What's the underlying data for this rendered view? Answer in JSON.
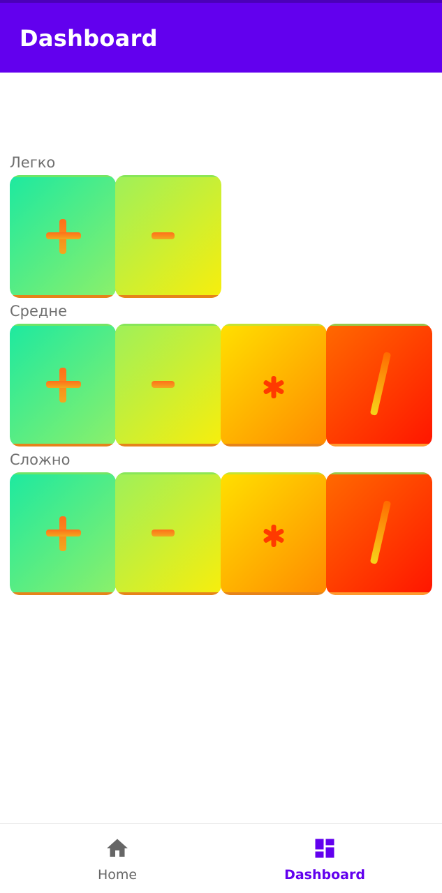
{
  "app_bar": {
    "title": "Dashboard"
  },
  "sections": [
    {
      "label": "Легко",
      "ops": [
        "+",
        "-"
      ]
    },
    {
      "label": "Средне",
      "ops": [
        "+",
        "-",
        "*",
        "/"
      ]
    },
    {
      "label": "Сложно",
      "ops": [
        "+",
        "-",
        "*",
        "/"
      ]
    }
  ],
  "bottom_nav": {
    "items": [
      {
        "label": "Home",
        "icon": "home-icon",
        "active": false
      },
      {
        "label": "Dashboard",
        "icon": "dashboard-icon",
        "active": true
      }
    ]
  },
  "colors": {
    "app_bar": "#6200ee",
    "active_nav": "#6200ee",
    "inactive_nav": "#666666",
    "label_gray": "#6f6f6f",
    "gradient_green": "#1de9a0",
    "gradient_yellow": "#f5ec10",
    "gradient_orange": "#ff9a00",
    "gradient_red": "#ff1500",
    "symbol_orange": "#f07a1e"
  }
}
